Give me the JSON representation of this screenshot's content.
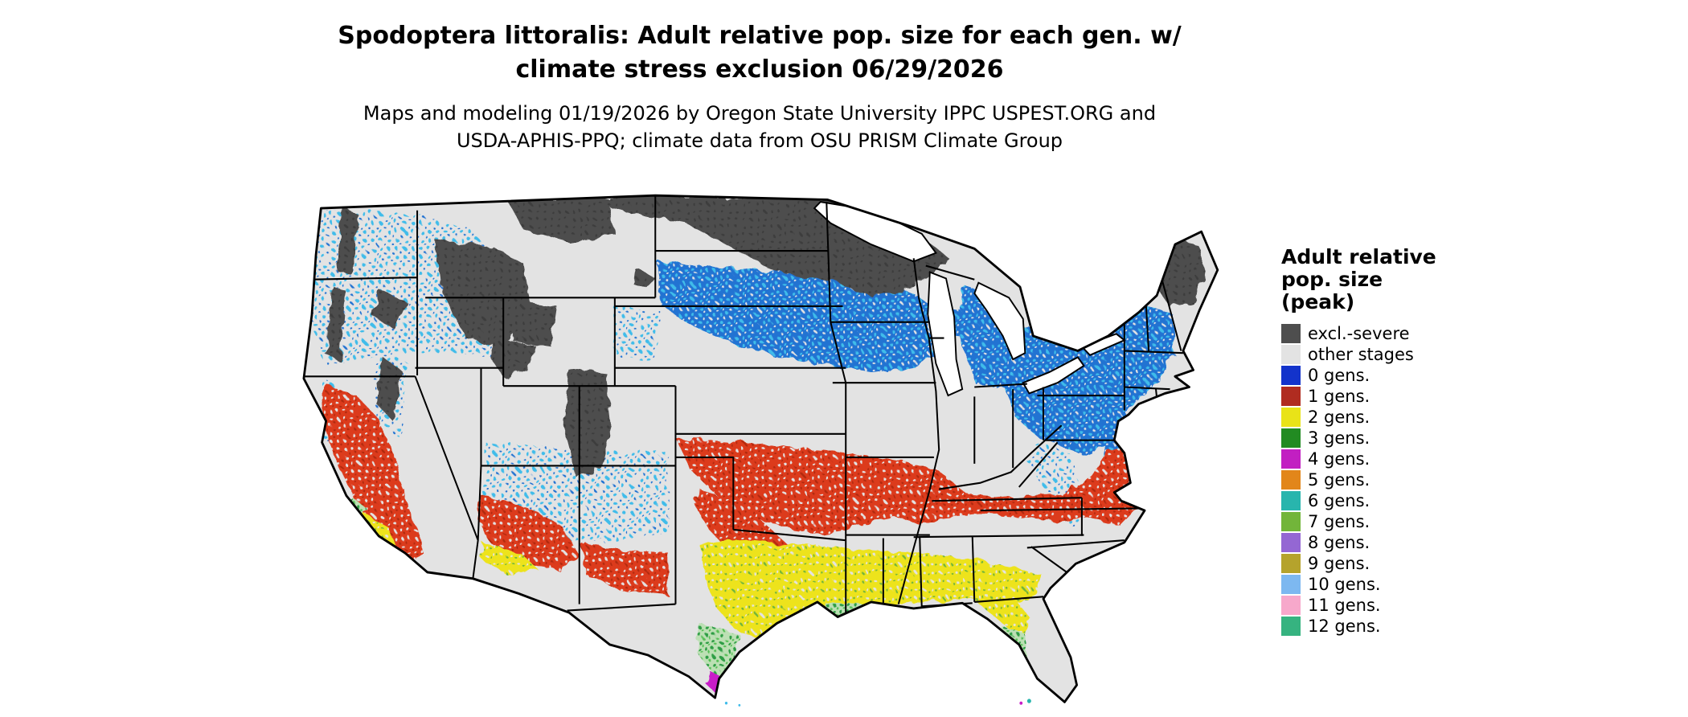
{
  "title": {
    "line1": "Spodoptera littoralis: Adult relative pop. size for each gen. w/",
    "line2": "climate stress exclusion 06/29/2026"
  },
  "subtitle": {
    "line1": "Maps and modeling 01/19/2026 by Oregon State University IPPC USPEST.ORG and",
    "line2": "USDA-APHIS-PPQ; climate data from OSU PRISM Climate Group"
  },
  "legend": {
    "title_line1": "Adult relative",
    "title_line2": "pop. size",
    "title_line3": "(peak)",
    "items": [
      {
        "label": "excl.-severe",
        "color": "#4E4E4E"
      },
      {
        "label": "other stages",
        "color": "#E3E3E3"
      },
      {
        "label": "0 gens.",
        "color": "#1333CB"
      },
      {
        "label": "1 gens.",
        "color": "#B02C20"
      },
      {
        "label": "2 gens.",
        "color": "#E9E318"
      },
      {
        "label": "3 gens.",
        "color": "#228B22"
      },
      {
        "label": "4 gens.",
        "color": "#C21FC2"
      },
      {
        "label": "5 gens.",
        "color": "#E2861A"
      },
      {
        "label": "6 gens.",
        "color": "#28B5AD"
      },
      {
        "label": "7 gens.",
        "color": "#72B53A"
      },
      {
        "label": "8 gens.",
        "color": "#9467D3"
      },
      {
        "label": "9 gens.",
        "color": "#B5A32C"
      },
      {
        "label": "10 gens.",
        "color": "#7DB8F0"
      },
      {
        "label": "11 gens.",
        "color": "#F7A8CB"
      },
      {
        "label": "12 gens.",
        "color": "#36B380"
      }
    ]
  },
  "map": {
    "area": "Continental United States (lower 48 states) with state boundaries",
    "land_background_color": "#E3E3E3",
    "state_border_color": "#000000",
    "zones": [
      {
        "legend": "excl.-severe",
        "map_areas": "northern Montana through North Dakota, Minnesota, Wisconsin and upper Michigan; northern Maine and Adirondacks; Cascade, Sierra Nevada and Rocky Mountain high elevations"
      },
      {
        "legend": "0 gens.",
        "map_areas": "band across South Dakota, Nebraska, Iowa, southern Minnesota and Wisconsin, Michigan, northern Ohio, Pennsylvania, New York and New England; scattered speckles over the Pacific Northwest, Appalachians and Colorado Plateau"
      },
      {
        "legend": "1 gens.",
        "map_areas": "band across Oklahoma, northern Texas, Arkansas, Tennessee, Virginia and the Carolinas; California coast ranges and foothills; central Arizona and southern New Mexico"
      },
      {
        "legend": "2 gens.",
        "map_areas": "central and south Texas through Louisiana, Mississippi, Alabama, Georgia and northern Florida; patches in southern Arizona and southern California"
      },
      {
        "legend": "3 gens.",
        "map_areas": "far southern Texas and central-to-south Florida"
      },
      {
        "legend": "4 gens.",
        "map_areas": "southern tip of Texas and southern tip of Florida"
      },
      {
        "legend": "other stages",
        "map_areas": "light gray regions across the central Plains, Missouri, Illinois, Indiana and coastal margins"
      }
    ]
  }
}
